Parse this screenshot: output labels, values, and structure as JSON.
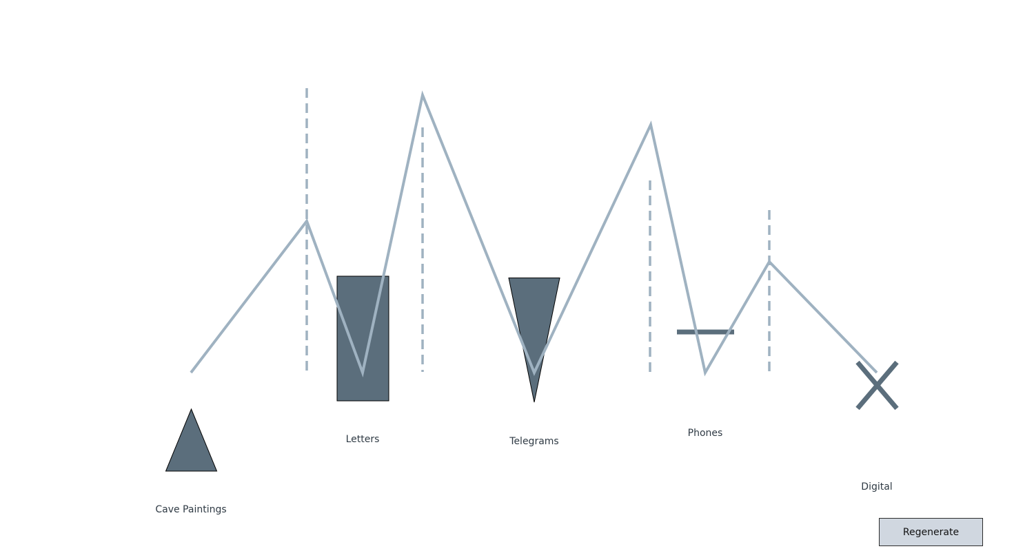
{
  "colors": {
    "background": "#ffffff",
    "shape_fill": "#5b6e7c",
    "shape_stroke": "#000000",
    "connector": "#9fb2c1",
    "label_text": "#2f3a44",
    "button_bg": "#d0d7e0",
    "button_border": "#2b2b2b"
  },
  "eras": [
    {
      "label": "Cave Paintings",
      "marker": "triangle-up"
    },
    {
      "label": "Letters",
      "marker": "rectangle"
    },
    {
      "label": "Telegrams",
      "marker": "triangle-down"
    },
    {
      "label": "Phones",
      "marker": "horizontal-bar"
    },
    {
      "label": "Digital",
      "marker": "x-cross"
    }
  ],
  "regenerate_button": {
    "label": "Regenerate"
  }
}
